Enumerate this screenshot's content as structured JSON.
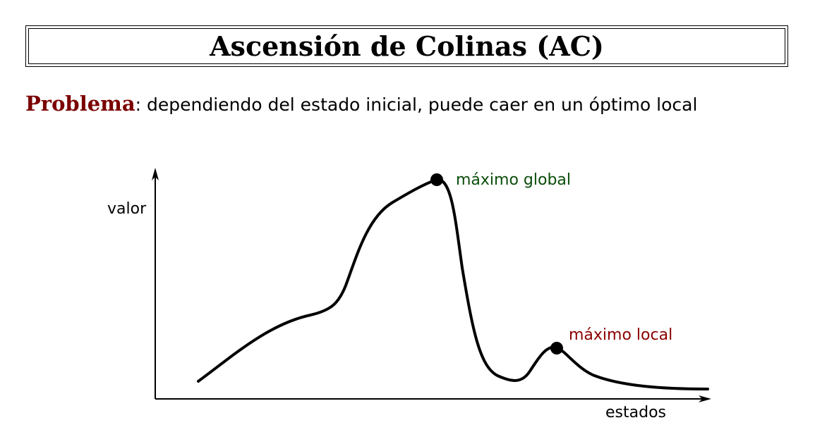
{
  "title": "Ascensión de Colinas (AC)",
  "problem": {
    "label": "Problema",
    "text": ": dependiendo del estado inicial, puede caer en un óptimo local"
  },
  "diagram": {
    "y_axis_label": "valor",
    "x_axis_label": "estados",
    "global_max_label": "máximo global",
    "local_max_label": "máximo local",
    "colors": {
      "global_max": "#0a4d0a",
      "local_max": "#8b0000",
      "curve": "#000000",
      "problem_word": "#7b0000"
    }
  }
}
